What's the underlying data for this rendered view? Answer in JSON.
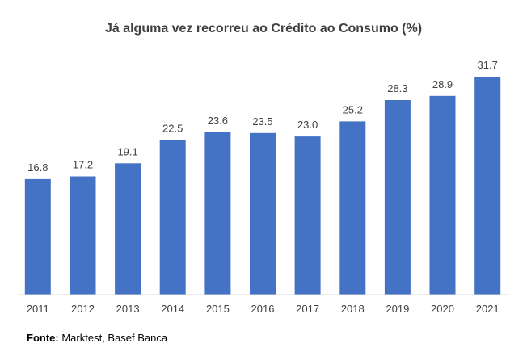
{
  "chart_data": {
    "type": "bar",
    "title": "Já alguma vez recorreu ao Crédito ao Consumo (%)",
    "categories": [
      "2011",
      "2012",
      "2013",
      "2014",
      "2015",
      "2016",
      "2017",
      "2018",
      "2019",
      "2020",
      "2021"
    ],
    "values": [
      16.8,
      17.2,
      19.1,
      22.5,
      23.6,
      23.5,
      23.0,
      25.2,
      28.3,
      28.9,
      31.7
    ],
    "value_labels": [
      "16.8",
      "17.2",
      "19.1",
      "22.5",
      "23.6",
      "23.5",
      "23.0",
      "25.2",
      "28.3",
      "28.9",
      "31.7"
    ],
    "xlabel": "",
    "ylabel": "",
    "ylim": [
      0,
      31.7
    ],
    "grid": false,
    "bar_color": "#4472C4"
  },
  "source": {
    "label": "Fonte:",
    "text": "Marktest, Basef Banca"
  }
}
